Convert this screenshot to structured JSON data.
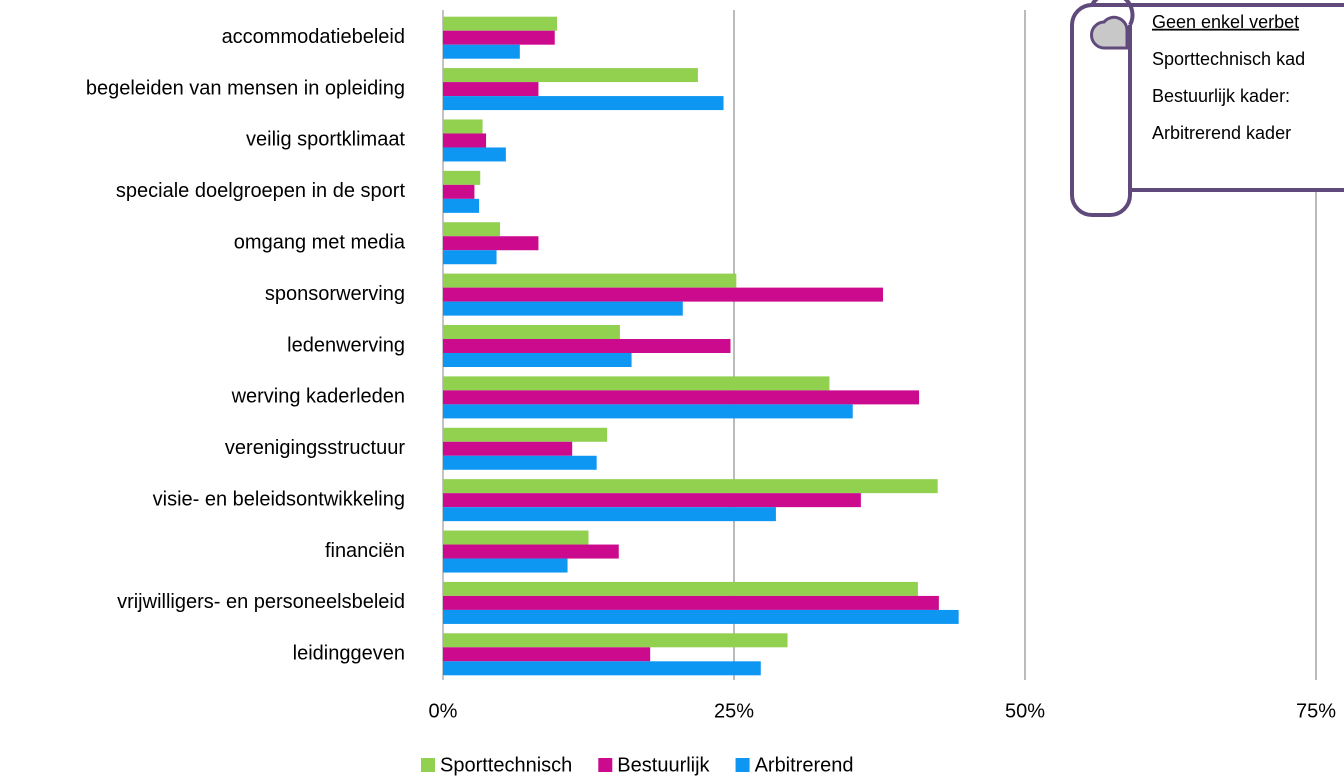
{
  "chart_data": {
    "type": "barh",
    "categories": [
      "accommodatiebeleid",
      "begeleiden van mensen in opleiding",
      "veilig sportklimaat",
      "speciale doelgroepen in de sport",
      "omgang met media",
      "sponsorwerving",
      "ledenwerving",
      "werving kaderleden",
      "verenigingsstructuur",
      "visie- en beleidsontwikkeling",
      "financiën",
      "vrijwilligers- en personeelsbeleid",
      "leidinggeven"
    ],
    "series": [
      {
        "name": "Sporttechnisch",
        "color": "#92d050",
        "values": [
          9.8,
          21.9,
          3.4,
          3.2,
          4.9,
          25.2,
          15.2,
          33.2,
          14.1,
          42.5,
          12.5,
          40.8,
          29.6
        ]
      },
      {
        "name": "Bestuurlijk",
        "color": "#cc0a8e",
        "values": [
          9.6,
          8.2,
          3.7,
          2.7,
          8.2,
          37.8,
          24.7,
          40.9,
          11.1,
          35.9,
          15.1,
          42.6,
          17.8
        ]
      },
      {
        "name": "Arbitrerend",
        "color": "#0d96f2",
        "values": [
          6.6,
          24.1,
          5.4,
          3.1,
          4.6,
          20.6,
          16.2,
          35.2,
          13.2,
          28.6,
          10.7,
          44.3,
          27.3
        ]
      }
    ],
    "xlim": [
      0,
      75
    ],
    "xticks": [
      {
        "value": 0,
        "label": "0%"
      },
      {
        "value": 25,
        "label": "25%"
      },
      {
        "value": 50,
        "label": "50%"
      },
      {
        "value": 75,
        "label": "75%"
      }
    ],
    "grid": true,
    "legend": "bottom",
    "annotations": [
      "Geen enkel verbet",
      "Sporttechnisch kad",
      "Bestuurlijk kader:",
      "Arbitrerend kader"
    ]
  }
}
